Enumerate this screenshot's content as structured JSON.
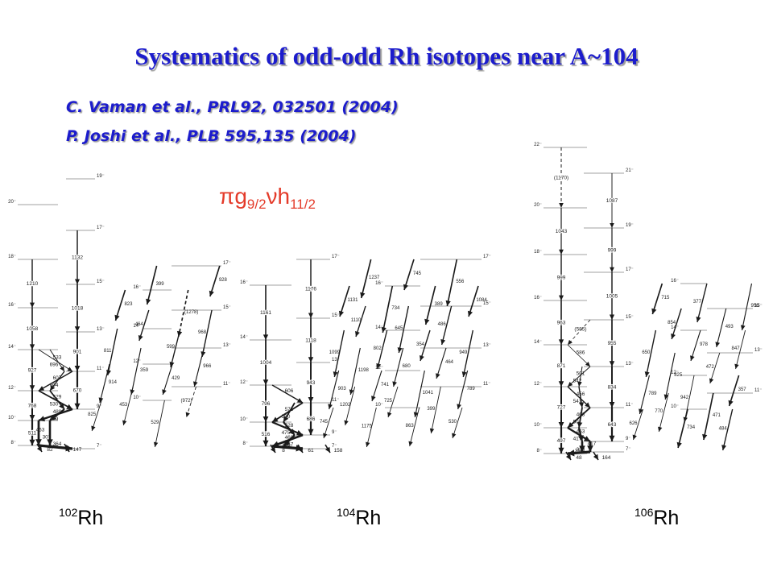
{
  "title": "Systematics of  odd-odd Rh isotopes near A~104",
  "references": [
    "C. Vaman et al., PRL92, 032501 (2004)",
    "P. Joshi et al., PLB 595,135 (2004)"
  ],
  "configuration": {
    "pi": "πg",
    "pi_sub": "9/2",
    "nu": "ν",
    "nu_h": "h",
    "nu_sub": "11/2"
  },
  "colors": {
    "title": "#1c1ccc",
    "config": "#e43b2a"
  },
  "schemes": [
    {
      "id": "rh102",
      "mass": "102",
      "element": "Rh",
      "yrast": {
        "spins": [
          "8⁻",
          "10⁻",
          "12⁻",
          "14⁻",
          "16⁻",
          "18⁻",
          "20⁻"
        ],
        "e2": [
          "511",
          "768",
          "927",
          "1058",
          "1210"
        ],
        "m1": [
          "364",
          "463",
          "489",
          "529",
          "607",
          "533"
        ]
      },
      "partner": {
        "spins": [
          "7⁻",
          "9⁻",
          "11⁻",
          "13⁻",
          "15⁻",
          "17⁻",
          "19⁻"
        ],
        "e2": [
          "670",
          "901",
          "1018",
          "1132"
        ],
        "m1": [
          "307",
          "439",
          "530",
          "604",
          "696"
        ]
      },
      "side": {
        "spins": [
          "10⁻",
          "12⁻",
          "14⁻",
          "16⁻",
          "11⁻",
          "13⁻",
          "15⁻",
          "17⁻"
        ],
        "values": [
          "825",
          "914",
          "811",
          "823",
          "453",
          "359",
          "464",
          "399",
          "529",
          "429",
          "599",
          "(1278)",
          "(972)",
          "966",
          "968",
          "928"
        ]
      },
      "low": [
        "82",
        "147"
      ]
    },
    {
      "id": "rh104",
      "mass": "104",
      "element": "Rh",
      "yrast": {
        "spins": [
          "8⁻",
          "10⁻",
          "12⁻",
          "14⁻",
          "16⁻"
        ],
        "e2": [
          "516",
          "796",
          "1004",
          "1161"
        ],
        "m1": [
          "357",
          "468",
          "528",
          "571",
          "606"
        ]
      },
      "partner": {
        "spins": [
          "7⁻",
          "9⁻",
          "11⁻",
          "13⁻",
          "15⁻",
          "17⁻"
        ],
        "e2": [
          "686",
          "943",
          "1118",
          "1176"
        ],
        "m1": [
          "328",
          "475",
          "590"
        ]
      },
      "side": {
        "spins": [
          "10⁻",
          "12⁻",
          "14⁻",
          "16⁻",
          "11⁻",
          "13⁻",
          "15⁻",
          "17⁻"
        ],
        "values": [
          "745",
          "903",
          "1099",
          "1131",
          "1202",
          "1198",
          "1110",
          "1237",
          "1175",
          "741",
          "802",
          "734",
          "725",
          "680",
          "645",
          "745",
          "863",
          "1041",
          "354",
          "389",
          "399",
          "464",
          "486",
          "556",
          "530",
          "789",
          "949",
          "1084"
        ]
      },
      "low": [
        "8",
        "61",
        "158"
      ]
    },
    {
      "id": "rh106",
      "mass": "106",
      "element": "Rh",
      "yrast": {
        "spins": [
          "8⁻",
          "10⁻",
          "12⁻",
          "14⁻",
          "16⁻",
          "18⁻",
          "20⁻",
          "22⁻"
        ],
        "e2": [
          "497",
          "727",
          "871",
          "963",
          "999",
          "1043",
          "(1170)"
        ],
        "m1": [
          "333",
          "417",
          "453",
          "463",
          "456",
          "501",
          "586",
          "(585)"
        ]
      },
      "partner": {
        "spins": [
          "7⁻",
          "9⁻",
          "11⁻",
          "13⁻",
          "15⁻",
          "17⁻",
          "19⁻",
          "21⁻"
        ],
        "e2": [
          "643",
          "834",
          "955",
          "1005",
          "999",
          "1087"
        ],
        "m1": [
          "310",
          "417",
          "501",
          "541",
          "542"
        ]
      },
      "side": {
        "spins": [
          "10⁻",
          "12⁻",
          "14⁻",
          "16⁻",
          "11⁻",
          "13⁻",
          "15⁻"
        ],
        "values": [
          "626",
          "789",
          "650",
          "715",
          "770",
          "825",
          "854",
          "734",
          "942",
          "978",
          "377",
          "471",
          "472",
          "493",
          "484",
          "357",
          "847",
          "956"
        ]
      },
      "low": [
        "48",
        "164"
      ]
    }
  ]
}
